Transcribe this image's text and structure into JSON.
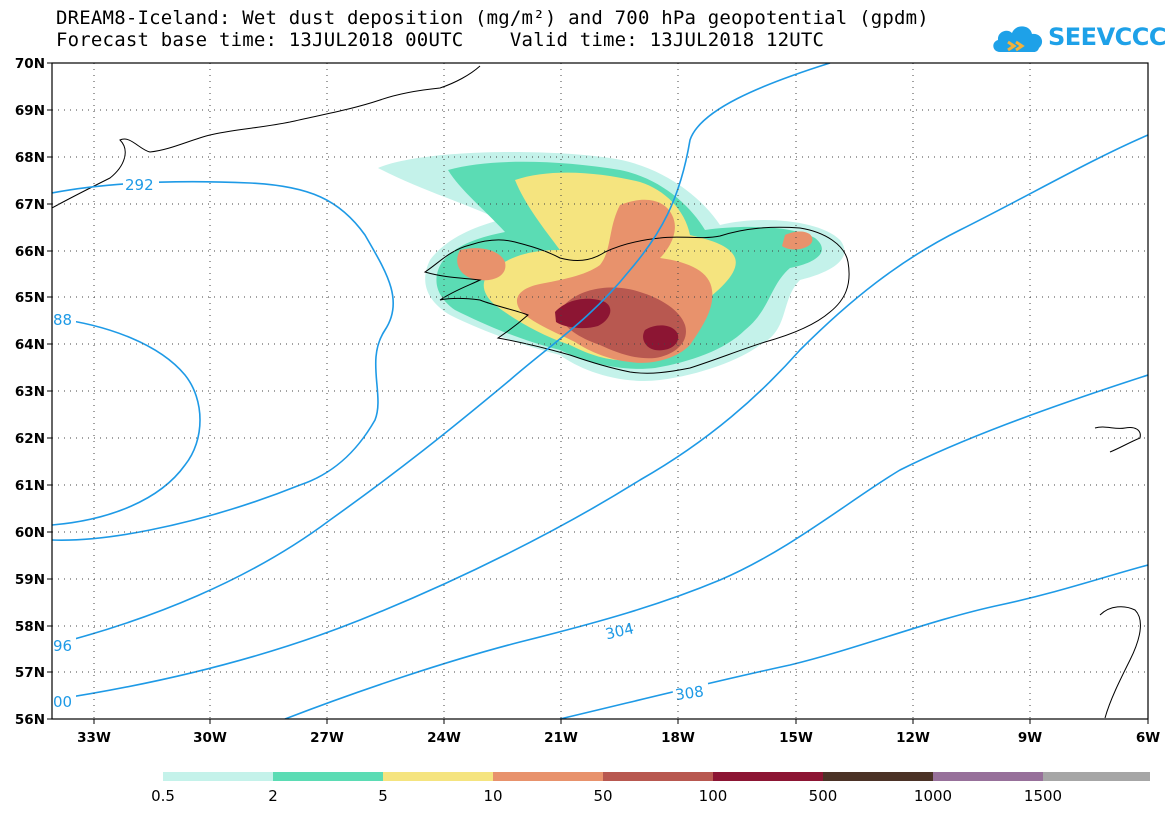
{
  "title": {
    "line1": "DREAM8-Iceland: Wet dust deposition (mg/m²) and 700 hPa geopotential (gpdm)",
    "line2": "Forecast base time: 13JUL2018 00UTC    Valid time: 13JUL2018 12UTC"
  },
  "logo": {
    "text": "SEEVCCC",
    "icon": "cloud-logo-icon",
    "color": "#1ea1e8"
  },
  "axes": {
    "lat_labels": [
      "70N",
      "69N",
      "68N",
      "67N",
      "66N",
      "65N",
      "64N",
      "63N",
      "62N",
      "61N",
      "60N",
      "59N",
      "58N",
      "57N",
      "56N"
    ],
    "lon_labels": [
      "33W",
      "30W",
      "27W",
      "24W",
      "21W",
      "18W",
      "15W",
      "12W",
      "9W",
      "6W"
    ]
  },
  "contour_labels": [
    {
      "text": "292"
    },
    {
      "text": "88"
    },
    {
      "text": "96"
    },
    {
      "text": "00"
    },
    {
      "text": "304"
    },
    {
      "text": "308"
    }
  ],
  "legend": {
    "colors": [
      "#c4f2ea",
      "#5bdcb4",
      "#f5e47f",
      "#e8926c",
      "#b85850",
      "#8c1533",
      "#4b3226",
      "#97709a",
      "#a6a6a6"
    ],
    "labels": [
      "0.5",
      "2",
      "5",
      "10",
      "50",
      "100",
      "500",
      "1000",
      "1500"
    ]
  },
  "colors": {
    "contour": "#1e9ae6",
    "coast": "#000000"
  }
}
